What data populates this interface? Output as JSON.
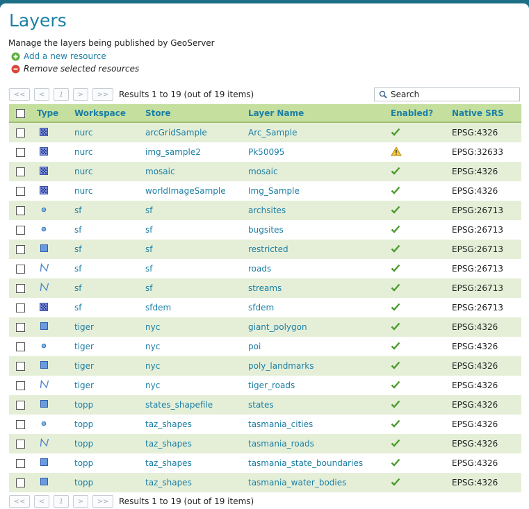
{
  "header": {
    "title": "Layers",
    "description": "Manage the layers being published by GeoServer"
  },
  "actions": [
    "Add a new resource",
    "Remove selected resources"
  ],
  "pager": {
    "buttons": [
      "<<",
      "<",
      "1",
      ">",
      ">>"
    ],
    "summary": "Results 1 to 19 (out of 19 items)"
  },
  "search": {
    "placeholder": "Search"
  },
  "table": {
    "columns": [
      "Type",
      "Workspace",
      "Store",
      "Layer Name",
      "Enabled?",
      "Native SRS"
    ],
    "rows": [
      {
        "type": "raster",
        "workspace": "nurc",
        "store": "arcGridSample",
        "layer": "Arc_Sample",
        "enabled": true,
        "srs": "EPSG:4326"
      },
      {
        "type": "raster",
        "workspace": "nurc",
        "store": "img_sample2",
        "layer": "Pk50095",
        "enabled": false,
        "srs": "EPSG:32633"
      },
      {
        "type": "raster",
        "workspace": "nurc",
        "store": "mosaic",
        "layer": "mosaic",
        "enabled": true,
        "srs": "EPSG:4326"
      },
      {
        "type": "raster",
        "workspace": "nurc",
        "store": "worldImageSample",
        "layer": "Img_Sample",
        "enabled": true,
        "srs": "EPSG:4326"
      },
      {
        "type": "point",
        "workspace": "sf",
        "store": "sf",
        "layer": "archsites",
        "enabled": true,
        "srs": "EPSG:26713"
      },
      {
        "type": "point",
        "workspace": "sf",
        "store": "sf",
        "layer": "bugsites",
        "enabled": true,
        "srs": "EPSG:26713"
      },
      {
        "type": "polygon",
        "workspace": "sf",
        "store": "sf",
        "layer": "restricted",
        "enabled": true,
        "srs": "EPSG:26713"
      },
      {
        "type": "line",
        "workspace": "sf",
        "store": "sf",
        "layer": "roads",
        "enabled": true,
        "srs": "EPSG:26713"
      },
      {
        "type": "line",
        "workspace": "sf",
        "store": "sf",
        "layer": "streams",
        "enabled": true,
        "srs": "EPSG:26713"
      },
      {
        "type": "raster",
        "workspace": "sf",
        "store": "sfdem",
        "layer": "sfdem",
        "enabled": true,
        "srs": "EPSG:26713"
      },
      {
        "type": "polygon",
        "workspace": "tiger",
        "store": "nyc",
        "layer": "giant_polygon",
        "enabled": true,
        "srs": "EPSG:4326"
      },
      {
        "type": "point",
        "workspace": "tiger",
        "store": "nyc",
        "layer": "poi",
        "enabled": true,
        "srs": "EPSG:4326"
      },
      {
        "type": "polygon",
        "workspace": "tiger",
        "store": "nyc",
        "layer": "poly_landmarks",
        "enabled": true,
        "srs": "EPSG:4326"
      },
      {
        "type": "line",
        "workspace": "tiger",
        "store": "nyc",
        "layer": "tiger_roads",
        "enabled": true,
        "srs": "EPSG:4326"
      },
      {
        "type": "polygon",
        "workspace": "topp",
        "store": "states_shapefile",
        "layer": "states",
        "enabled": true,
        "srs": "EPSG:4326"
      },
      {
        "type": "point",
        "workspace": "topp",
        "store": "taz_shapes",
        "layer": "tasmania_cities",
        "enabled": true,
        "srs": "EPSG:4326"
      },
      {
        "type": "line",
        "workspace": "topp",
        "store": "taz_shapes",
        "layer": "tasmania_roads",
        "enabled": true,
        "srs": "EPSG:4326"
      },
      {
        "type": "polygon",
        "workspace": "topp",
        "store": "taz_shapes",
        "layer": "tasmania_state_boundaries",
        "enabled": true,
        "srs": "EPSG:4326"
      },
      {
        "type": "polygon",
        "workspace": "topp",
        "store": "taz_shapes",
        "layer": "tasmania_water_bodies",
        "enabled": true,
        "srs": "EPSG:4326"
      }
    ]
  }
}
